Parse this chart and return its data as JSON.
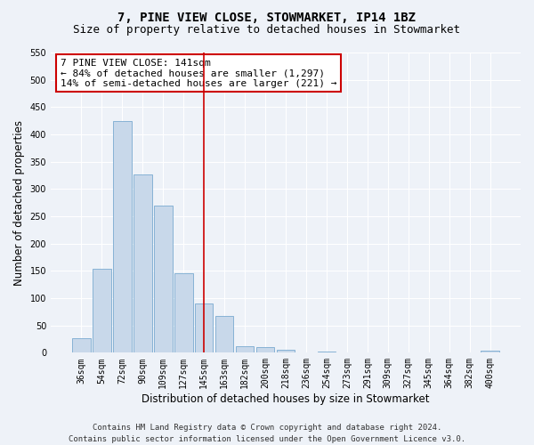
{
  "title": "7, PINE VIEW CLOSE, STOWMARKET, IP14 1BZ",
  "subtitle": "Size of property relative to detached houses in Stowmarket",
  "xlabel": "Distribution of detached houses by size in Stowmarket",
  "ylabel": "Number of detached properties",
  "categories": [
    "36sqm",
    "54sqm",
    "72sqm",
    "90sqm",
    "109sqm",
    "127sqm",
    "145sqm",
    "163sqm",
    "182sqm",
    "200sqm",
    "218sqm",
    "236sqm",
    "254sqm",
    "273sqm",
    "291sqm",
    "309sqm",
    "327sqm",
    "345sqm",
    "364sqm",
    "382sqm",
    "400sqm"
  ],
  "values": [
    27,
    154,
    424,
    327,
    270,
    145,
    91,
    67,
    12,
    10,
    5,
    0,
    2,
    0,
    0,
    0,
    0,
    1,
    0,
    0,
    3
  ],
  "bar_color": "#c8d8ea",
  "bar_edge_color": "#7aaad0",
  "red_line_index": 6,
  "annotation_line1": "7 PINE VIEW CLOSE: 141sqm",
  "annotation_line2": "← 84% of detached houses are smaller (1,297)",
  "annotation_line3": "14% of semi-detached houses are larger (221) →",
  "annotation_box_facecolor": "#ffffff",
  "annotation_box_edgecolor": "#cc0000",
  "red_line_color": "#cc0000",
  "ylim": [
    0,
    550
  ],
  "yticks": [
    0,
    50,
    100,
    150,
    200,
    250,
    300,
    350,
    400,
    450,
    500,
    550
  ],
  "footer_line1": "Contains HM Land Registry data © Crown copyright and database right 2024.",
  "footer_line2": "Contains public sector information licensed under the Open Government Licence v3.0.",
  "background_color": "#eef2f8",
  "plot_bg_color": "#eef2f8",
  "grid_color": "#ffffff",
  "title_fontsize": 10,
  "subtitle_fontsize": 9,
  "axis_label_fontsize": 8.5,
  "tick_fontsize": 7,
  "annotation_fontsize": 8,
  "footer_fontsize": 6.5
}
